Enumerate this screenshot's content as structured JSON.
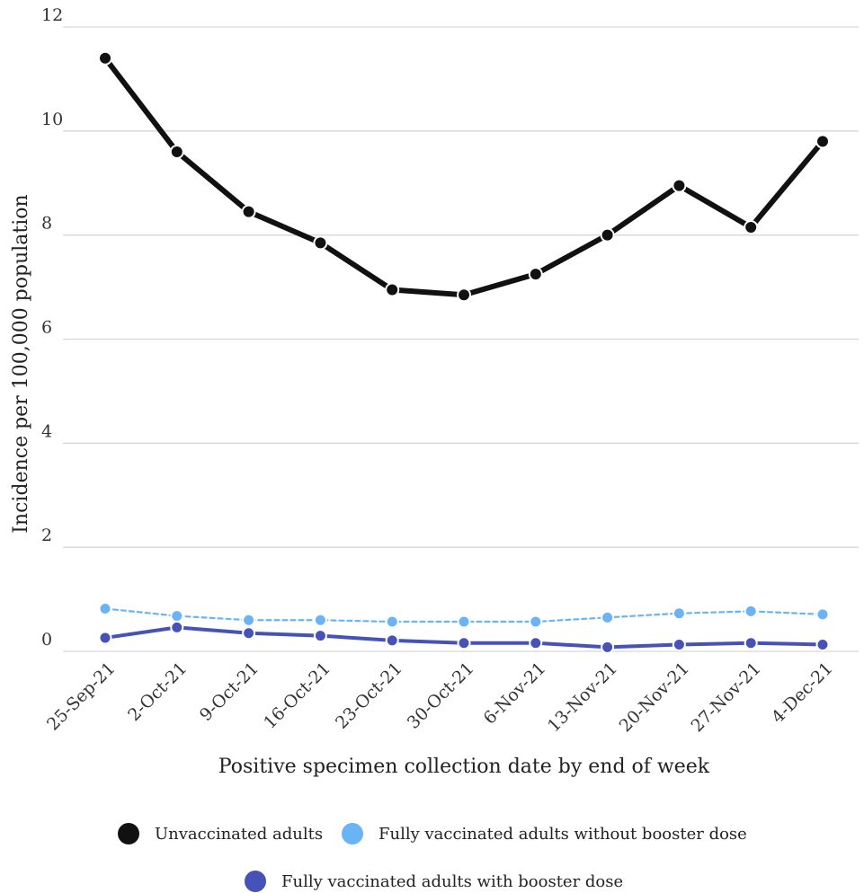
{
  "chart_data": {
    "type": "line",
    "title": "",
    "xlabel": "Positive specimen collection date by end of week",
    "ylabel": "Incidence per 100,000 population",
    "ylim": [
      0,
      12
    ],
    "yticks": [
      0,
      2,
      4,
      6,
      8,
      10,
      12
    ],
    "grid": true,
    "legend_placement": "bottom",
    "categories": [
      "25-Sep-21",
      "2-Oct-21",
      "9-Oct-21",
      "16-Oct-21",
      "23-Oct-21",
      "30-Oct-21",
      "6-Nov-21",
      "13-Nov-21",
      "20-Nov-21",
      "27-Nov-21",
      "4-Dec-21"
    ],
    "series": [
      {
        "name": "Unvaccinated adults",
        "color": "#111111",
        "style": "solid",
        "values": [
          11.4,
          9.6,
          8.45,
          7.85,
          6.95,
          6.85,
          7.25,
          8.0,
          8.95,
          8.15,
          9.8
        ]
      },
      {
        "name": "Fully vaccinated adults without booster dose",
        "color": "#6ab4f5",
        "style": "dashed",
        "values": [
          0.82,
          0.68,
          0.6,
          0.6,
          0.57,
          0.57,
          0.57,
          0.65,
          0.73,
          0.77,
          0.71
        ]
      },
      {
        "name": "Fully vaccinated adults with booster dose",
        "color": "#4652b8",
        "style": "solid",
        "values": [
          0.26,
          0.46,
          0.35,
          0.3,
          0.21,
          0.16,
          0.16,
          0.08,
          0.13,
          0.16,
          0.13
        ]
      }
    ]
  }
}
